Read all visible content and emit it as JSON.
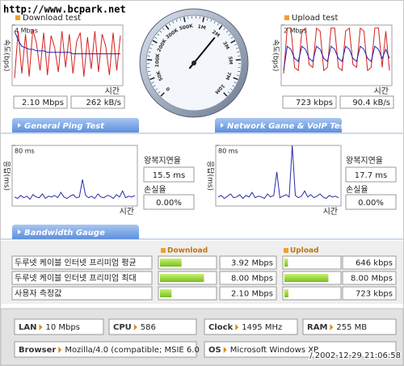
{
  "watermark": "http://www.bcpark.net",
  "timestamp": "/ 2002-12-29 21:06:58",
  "download": {
    "type": "line",
    "title": "Download test",
    "y_label": "속도(bps)",
    "x_label": "시간",
    "ylim": [
      0,
      4
    ],
    "yticks": [
      {
        "value": 4,
        "label": "4 Mbps"
      }
    ],
    "series": [
      {
        "color": "#d42020",
        "values": [
          0.5,
          3.6,
          0.8,
          3.4,
          0.6,
          3.7,
          2.8,
          1.0,
          3.5,
          0.7,
          3.3,
          2.5,
          0.9,
          3.6,
          1.2,
          3.4,
          0.8,
          2.9,
          3.5,
          0.6,
          3.2,
          1.1,
          3.6,
          0.9,
          3.4,
          2.6,
          0.7,
          3.5,
          1.0,
          3.3
        ]
      },
      {
        "color": "#2020b0",
        "values": [
          3.6,
          3.0,
          2.6,
          2.5,
          2.4,
          2.4,
          2.3,
          2.3,
          2.3,
          2.2,
          2.2,
          2.2,
          2.2,
          2.2,
          2.2,
          2.2,
          2.1,
          2.1,
          2.1,
          2.1,
          2.1,
          2.1,
          2.1,
          2.1,
          2.1,
          2.1,
          2.1,
          2.1,
          2.1,
          2.1
        ]
      }
    ],
    "speed": {
      "value": 2.1,
      "label": "2.10 Mbps"
    },
    "rate": "262 kB/s"
  },
  "upload": {
    "type": "line",
    "title": "Upload test",
    "y_label": "속도(bps)",
    "x_label": "시간",
    "ylim": [
      0,
      2
    ],
    "yticks": [
      {
        "value": 2,
        "label": "2 Mbps"
      }
    ],
    "series": [
      {
        "color": "#d42020",
        "values": [
          0.4,
          1.9,
          1.9,
          0.6,
          0.5,
          1.8,
          1.9,
          0.7,
          0.6,
          1.9,
          1.8,
          0.5,
          0.6,
          1.9,
          1.9,
          0.6,
          0.5,
          1.8,
          1.9,
          0.7,
          0.6,
          1.9,
          1.8,
          0.5,
          0.6,
          1.9,
          1.9,
          0.6,
          1.8,
          0.5
        ]
      },
      {
        "color": "#2020b0",
        "values": [
          0.5,
          1.3,
          1.2,
          0.9,
          0.8,
          1.3,
          1.2,
          0.9,
          0.8,
          1.3,
          1.2,
          0.9,
          0.8,
          1.3,
          1.2,
          0.9,
          0.8,
          1.3,
          1.2,
          0.9,
          0.8,
          1.3,
          1.2,
          0.9,
          0.8,
          1.3,
          1.2,
          0.9,
          1.2,
          0.9
        ]
      }
    ],
    "speed": {
      "value": 0.723,
      "label": "723 kbps"
    },
    "rate": "90.4 kB/s"
  },
  "gauge": {
    "ticks": [
      0,
      {
        "value": 0.05,
        "label": "50K"
      },
      {
        "value": 0.1,
        "label": "100K"
      },
      {
        "value": 0.2,
        "label": "200K"
      },
      {
        "value": 0.3,
        "label": "300K"
      },
      {
        "value": 0.5,
        "label": "500K"
      },
      {
        "value": 1,
        "label": "1M"
      },
      {
        "value": 2,
        "label": "2M"
      },
      {
        "value": 3,
        "label": "3M"
      },
      {
        "value": 5,
        "label": "5M"
      },
      {
        "value": 7,
        "label": "7M"
      },
      {
        "value": 10,
        "label": "10M"
      }
    ]
  },
  "tabs": {
    "ping": "General Ping Test",
    "game": "Network Game & VoIP Test",
    "bandwidth": "Bandwidth Gauge"
  },
  "ping": [
    {
      "type": "line",
      "y_label": "응답(ms)",
      "x_label": "시간",
      "ylim": [
        0,
        80
      ],
      "yticks": [
        {
          "value": 80,
          "label": "80 ms"
        }
      ],
      "series": [
        {
          "color": "#2a2aa8",
          "values": [
            12,
            10,
            14,
            11,
            13,
            9,
            15,
            12,
            11,
            16,
            10,
            13,
            12,
            14,
            11,
            18,
            12,
            10,
            13,
            15,
            11,
            12,
            35,
            14,
            11,
            13,
            10,
            16,
            12,
            11,
            14,
            13,
            10,
            15,
            12,
            20,
            11,
            13,
            12,
            14
          ]
        }
      ],
      "latency_label": "왕복지연율",
      "latency": "15.5 ms",
      "loss_label": "손실율",
      "loss": "0.00%"
    },
    {
      "type": "line",
      "y_label": "응답(ms)",
      "x_label": "시간",
      "ylim": [
        0,
        80
      ],
      "yticks": [
        {
          "value": 80,
          "label": "80 ms"
        }
      ],
      "series": [
        {
          "color": "#2a2aa8",
          "values": [
            12,
            14,
            10,
            13,
            16,
            11,
            12,
            15,
            10,
            14,
            12,
            18,
            11,
            13,
            12,
            10,
            16,
            12,
            14,
            45,
            11,
            13,
            15,
            12,
            80,
            14,
            11,
            13,
            20,
            12,
            15,
            11,
            13,
            16,
            12,
            10,
            14,
            12,
            13,
            11
          ]
        }
      ],
      "latency_label": "왕복지연율",
      "latency": "17.7 ms",
      "loss_label": "손실율",
      "loss": "0.00%"
    }
  ],
  "bandwidth": {
    "xlim": [
      0,
      10
    ],
    "download_header": "Download",
    "upload_header": "Upload",
    "rows": [
      {
        "name": "두루넷 케이블 인터넷 프리미엄 평균",
        "download": 3.92,
        "download_label": "3.92 Mbps",
        "upload": 0.646,
        "upload_label": "646 kbps"
      },
      {
        "name": "두루넷 케이블 인터넷 프리미엄 최대",
        "download": 8.0,
        "download_label": "8.00 Mbps",
        "upload": 8.0,
        "upload_label": "8.00 Mbps"
      },
      {
        "name": "사용자 측정값",
        "download": 2.1,
        "download_label": "2.10 Mbps",
        "upload": 0.723,
        "upload_label": "723 kbps"
      }
    ]
  },
  "system": [
    {
      "label": "LAN",
      "value": "10 Mbps"
    },
    {
      "label": "CPU",
      "value": "586"
    },
    {
      "label": "Clock",
      "value": "1495 MHz"
    },
    {
      "label": "RAM",
      "value": "255 MB"
    },
    {
      "label": "Browser",
      "value": "Mozilla/4.0 (compatible; MSIE 6.0"
    },
    {
      "label": "OS",
      "value": "Microsoft Windows XP"
    }
  ]
}
